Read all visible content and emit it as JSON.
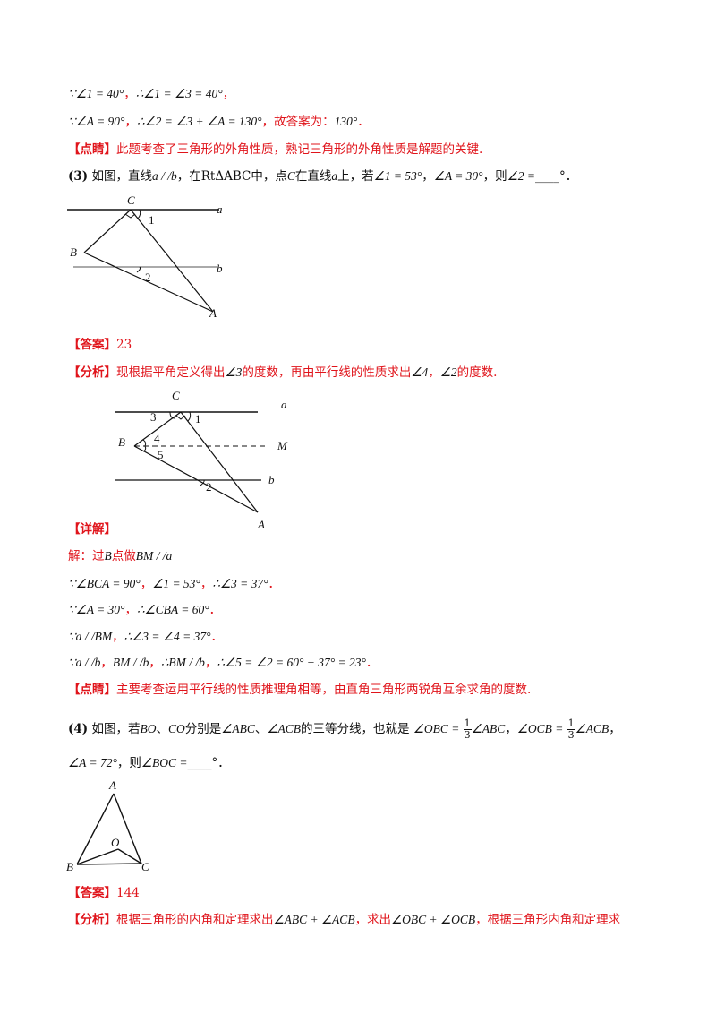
{
  "lines": {
    "l1": {
      "a": "∵∠1 = 40°",
      "b": "，",
      "c": "∴∠1 = ∠3 = 40°",
      "d": "，"
    },
    "l2": {
      "a": "∵∠A = 90°",
      "b": "，",
      "c": "∴∠2 = ∠3 + ∠A = 130°",
      "d": "，故答案为：",
      "e": "130°",
      "f": "．"
    },
    "l3": {
      "tag": "【点睛】",
      "text": "此题考查了三角形的外角性质，熟记三角形的外角性质是解题的关键."
    },
    "q3": {
      "num": "(3)",
      "t1": "如图，直线",
      "m1": "a / /b",
      "t2": "，在",
      "m2": "RtΔABC",
      "t3": "中，点",
      "m3": "C",
      "t4": "在直线",
      "m4": "a",
      "t5": "上，若",
      "m5": "∠1 = 53°",
      "t6": "，",
      "m6": "∠A = 30°",
      "t7": "，则",
      "m7": "∠2 =",
      "blank": "____",
      "t8": "°．"
    },
    "ans3": {
      "tag": "【答案】",
      "val": "23"
    },
    "ana3": {
      "tag": "【分析】",
      "t1": "现根据平角定义得出",
      "m1": "∠3",
      "t2": "的度数，再由平行线的性质求出",
      "m2": "∠4",
      "t3": "，",
      "m3": "∠2",
      "t4": "的度数."
    },
    "det3": {
      "tag": "【详解】"
    },
    "s1": {
      "a": "解：过",
      "b": "B",
      "c": "点做",
      "d": "BM / /a"
    },
    "s2": {
      "a": "∵∠BCA = 90°",
      "b": "，",
      "c": "∠1 = 53°",
      "d": "，",
      "e": "∴∠3 = 37°",
      "f": "．"
    },
    "s3": {
      "a": "∵∠A = 30°",
      "b": "，",
      "c": "∴∠CBA = 60°",
      "d": "．"
    },
    "s4": {
      "a": "∵a / /BM",
      "b": "，",
      "c": "∴∠3 = ∠4 = 37°",
      "d": "．"
    },
    "s5": {
      "a": "∵a / /b",
      "b": "，",
      "c": "BM / /b",
      "d": "，",
      "e": "∴BM / /b",
      "f": "，",
      "g": "∴∠5 = ∠2 = 60° − 37° = 23°",
      "h": "．"
    },
    "tip3": {
      "tag": "【点睛】",
      "text": "主要考查运用平行线的性质推理角相等，由直角三角形两锐角互余求角的度数."
    },
    "q4": {
      "num": "(4)",
      "t1": "如图，若",
      "m1": "BO",
      "t2": "、",
      "m2": "CO",
      "t3": "分别是",
      "m3": "∠ABC",
      "t4": "、",
      "m4": "∠ACB",
      "t5": "的三等分线，也就是",
      "m5a": "∠OBC =",
      "fn": "1",
      "fd": "3",
      "m5b": "∠ABC",
      "t6": "，",
      "m6a": "∠OCB =",
      "m6b": "∠ACB",
      "t7": "，"
    },
    "q4b": {
      "m1": "∠A = 72°",
      "t1": "，则",
      "m2": "∠BOC =",
      "blank": "____",
      "t2": "°．"
    },
    "ans4": {
      "tag": "【答案】",
      "val": "144"
    },
    "ana4": {
      "tag": "【分析】",
      "t1": "根据三角形的内角和定理求出",
      "m1": "∠ABC + ∠ACB",
      "t2": "，求出",
      "m2": "∠OBC + ∠OCB",
      "t3": "，根据三角形内角和定理求"
    }
  },
  "fig1": {
    "C": "C",
    "a": "a",
    "B": "B",
    "b": "b",
    "A": "A",
    "n1": "1",
    "n2": "2"
  },
  "fig2": {
    "C": "C",
    "a": "a",
    "B": "B",
    "M": "M",
    "b": "b",
    "A": "A",
    "n1": "1",
    "n2": "2",
    "n3": "3",
    "n4": "4",
    "n5": "5"
  },
  "fig3": {
    "A": "A",
    "O": "O",
    "B": "B",
    "C": "C"
  },
  "colors": {
    "red": "#e0141b",
    "text": "#111111"
  }
}
